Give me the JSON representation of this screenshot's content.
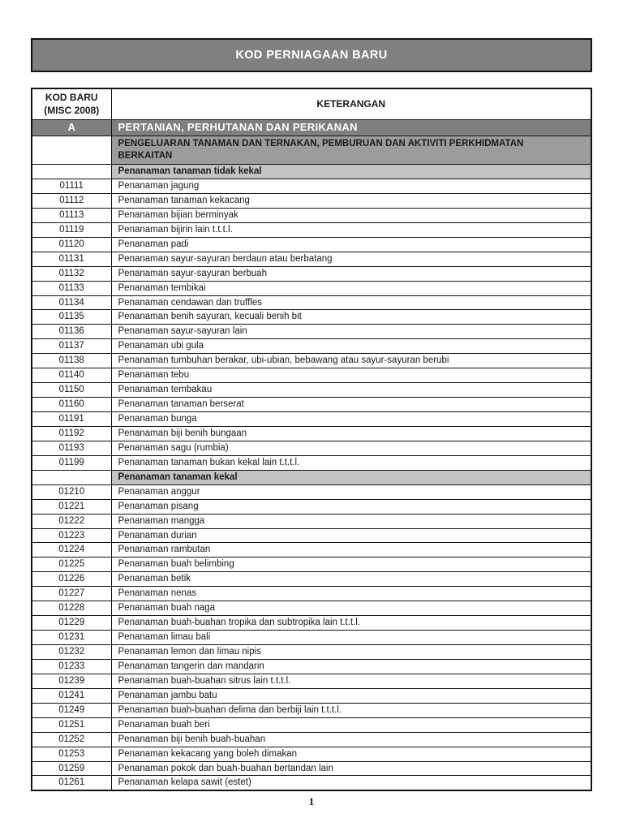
{
  "banner": {
    "title": "KOD PERNIAGAAN BARU"
  },
  "table": {
    "code_header_line1": "KOD BARU",
    "code_header_line2": "(MISC 2008)",
    "desc_header": "KETERANGAN",
    "rows": [
      {
        "type": "section",
        "code": "A",
        "text": "PERTANIAN, PERHUTANAN DAN PERIKANAN"
      },
      {
        "type": "subsection",
        "code": "",
        "text": "PENGELUARAN TANAMAN DAN TERNAKAN, PEMBURUAN DAN AKTIVITI PERKHIDMATAN BERKAITAN"
      },
      {
        "type": "group",
        "code": "",
        "text": "Penanaman tanaman tidak kekal"
      },
      {
        "type": "item",
        "code": "01111",
        "text": "Penanaman jagung"
      },
      {
        "type": "item",
        "code": "01112",
        "text": "Penanaman tanaman kekacang"
      },
      {
        "type": "item",
        "code": "01113",
        "text": "Penanaman bijian berminyak"
      },
      {
        "type": "item",
        "code": "01119",
        "text": "Penanaman bijirin lain t.t.t.l."
      },
      {
        "type": "item",
        "code": "01120",
        "text": "Penanaman padi"
      },
      {
        "type": "item",
        "code": "01131",
        "text": "Penanaman sayur-sayuran berdaun atau berbatang"
      },
      {
        "type": "item",
        "code": "01132",
        "text": "Penanaman sayur-sayuran berbuah"
      },
      {
        "type": "item",
        "code": "01133",
        "text": "Penanaman tembikai"
      },
      {
        "type": "item",
        "code": "01134",
        "text": "Penanaman cendawan dan truffles"
      },
      {
        "type": "item",
        "code": "01135",
        "text": "Penanaman benih sayuran, kecuali benih bit"
      },
      {
        "type": "item",
        "code": "01136",
        "text": "Penanaman sayur-sayuran lain"
      },
      {
        "type": "item",
        "code": "01137",
        "text": "Penanaman ubi gula"
      },
      {
        "type": "item",
        "code": "01138",
        "text": "Penanaman tumbuhan berakar, ubi-ubian, bebawang atau sayur-sayuran berubi"
      },
      {
        "type": "item",
        "code": "01140",
        "text": "Penanaman tebu"
      },
      {
        "type": "item",
        "code": "01150",
        "text": "Penanaman tembakau"
      },
      {
        "type": "item",
        "code": "01160",
        "text": "Penanaman tanaman berserat"
      },
      {
        "type": "item",
        "code": "01191",
        "text": "Penanaman bunga"
      },
      {
        "type": "item",
        "code": "01192",
        "text": "Penanaman biji benih bungaan"
      },
      {
        "type": "item",
        "code": "01193",
        "text": "Penanaman sagu (rumbia)"
      },
      {
        "type": "item",
        "code": "01199",
        "text": "Penanaman tanaman bukan kekal lain t.t.t.l."
      },
      {
        "type": "group",
        "code": "",
        "text": "Penanaman tanaman kekal"
      },
      {
        "type": "item",
        "code": "01210",
        "text": "Penanaman anggur"
      },
      {
        "type": "item",
        "code": "01221",
        "text": "Penanaman pisang"
      },
      {
        "type": "item",
        "code": "01222",
        "text": "Penanaman mangga"
      },
      {
        "type": "item",
        "code": "01223",
        "text": "Penanaman durian"
      },
      {
        "type": "item",
        "code": "01224",
        "text": "Penanaman rambutan"
      },
      {
        "type": "item",
        "code": "01225",
        "text": "Penanaman buah belimbing"
      },
      {
        "type": "item",
        "code": "01226",
        "text": "Penanaman betik"
      },
      {
        "type": "item",
        "code": "01227",
        "text": "Penanaman nenas"
      },
      {
        "type": "item",
        "code": "01228",
        "text": "Penanaman buah naga"
      },
      {
        "type": "item",
        "code": "01229",
        "text": "Penanaman buah-buahan tropika dan subtropika lain t.t.t.l."
      },
      {
        "type": "item",
        "code": "01231",
        "text": "Penanaman limau bali"
      },
      {
        "type": "item",
        "code": "01232",
        "text": "Penanaman lemon dan limau nipis"
      },
      {
        "type": "item",
        "code": "01233",
        "text": "Penanaman tangerin dan mandarin"
      },
      {
        "type": "item",
        "code": "01239",
        "text": "Penanaman buah-buahan sitrus lain t.t.t.l."
      },
      {
        "type": "item",
        "code": "01241",
        "text": "Penanaman jambu batu"
      },
      {
        "type": "item",
        "code": "01249",
        "text": "Penanaman buah-buahan delima dan berbiji lain t.t.t.l."
      },
      {
        "type": "item",
        "code": "01251",
        "text": "Penanaman buah beri"
      },
      {
        "type": "item",
        "code": "01252",
        "text": "Penanaman biji benih buah-buahan"
      },
      {
        "type": "item",
        "code": "01253",
        "text": "Penanaman kekacang yang boleh dimakan"
      },
      {
        "type": "item",
        "code": "01259",
        "text": "Penanaman pokok dan buah-buahan bertandan lain"
      },
      {
        "type": "item",
        "code": "01261",
        "text": "Penanaman kelapa sawit (estet)"
      }
    ]
  },
  "footer": {
    "page_number": "1"
  },
  "colors": {
    "banner_bg": "#808080",
    "section_bg": "#7f7f7f",
    "subsection_bg": "#9c9c9c",
    "group_bg": "#c3c3c3",
    "border": "#121212"
  }
}
